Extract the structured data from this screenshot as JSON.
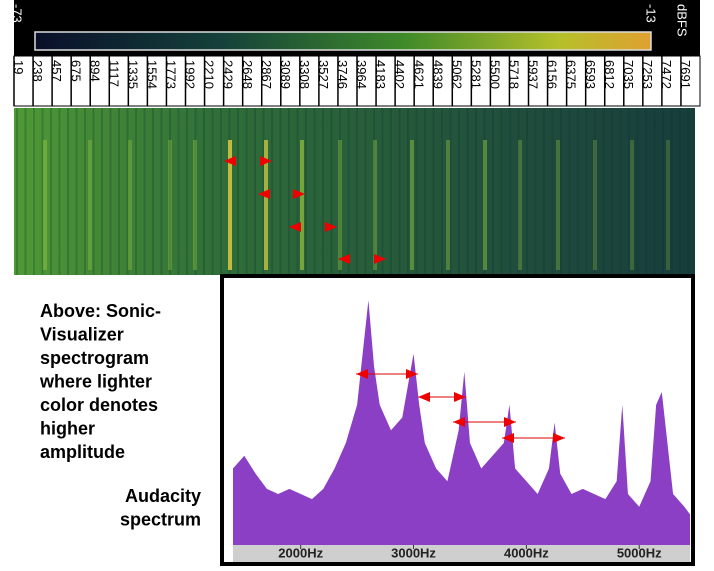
{
  "colorbar": {
    "min_label": "-73",
    "max_label": "-13",
    "unit": "dBFS"
  },
  "frequency_labels": [
    "19",
    "238",
    "457",
    "675",
    "894",
    "1117",
    "1335",
    "1554",
    "1773",
    "1992",
    "2210",
    "2429",
    "2648",
    "2867",
    "3089",
    "3308",
    "3527",
    "3746",
    "3964",
    "4183",
    "4402",
    "4621",
    "4839",
    "5062",
    "5281",
    "5500",
    "5718",
    "5937",
    "6156",
    "6375",
    "6593",
    "6812",
    "7035",
    "7253",
    "7472",
    "7691"
  ],
  "caption": {
    "spectrogram": [
      "Above: Sonic-",
      "Visualizer",
      "spectrogram",
      "where lighter",
      "color denotes",
      "higher",
      "amplitude"
    ],
    "spectrum": [
      "Audacity",
      "spectrum"
    ]
  },
  "chart_data": {
    "type": "area",
    "color": "#8b3fc4",
    "x": [
      1400,
      1500,
      1600,
      1700,
      1800,
      1900,
      2000,
      2100,
      2200,
      2300,
      2400,
      2500,
      2600,
      2650,
      2700,
      2800,
      2900,
      3000,
      3050,
      3100,
      3200,
      3300,
      3400,
      3450,
      3500,
      3600,
      3700,
      3800,
      3850,
      3900,
      4000,
      4100,
      4200,
      4250,
      4300,
      4400,
      4500,
      4600,
      4700,
      4800,
      4850,
      4900,
      5000,
      5100,
      5150,
      5200,
      5300,
      5400,
      5450
    ],
    "values": [
      30,
      35,
      28,
      22,
      20,
      22,
      20,
      18,
      22,
      30,
      40,
      55,
      96,
      70,
      55,
      45,
      50,
      75,
      55,
      40,
      30,
      25,
      45,
      68,
      40,
      30,
      35,
      40,
      55,
      30,
      25,
      20,
      30,
      48,
      28,
      20,
      22,
      20,
      18,
      25,
      55,
      20,
      15,
      25,
      55,
      60,
      20,
      15,
      12
    ],
    "xlim": [
      1400,
      5450
    ],
    "ylim": [
      0,
      100
    ],
    "xticks": [
      {
        "value": 2000,
        "label": "2000Hz"
      },
      {
        "value": 3000,
        "label": "3000Hz"
      },
      {
        "value": 4000,
        "label": "4000Hz"
      },
      {
        "value": 5000,
        "label": "5000Hz"
      }
    ]
  }
}
